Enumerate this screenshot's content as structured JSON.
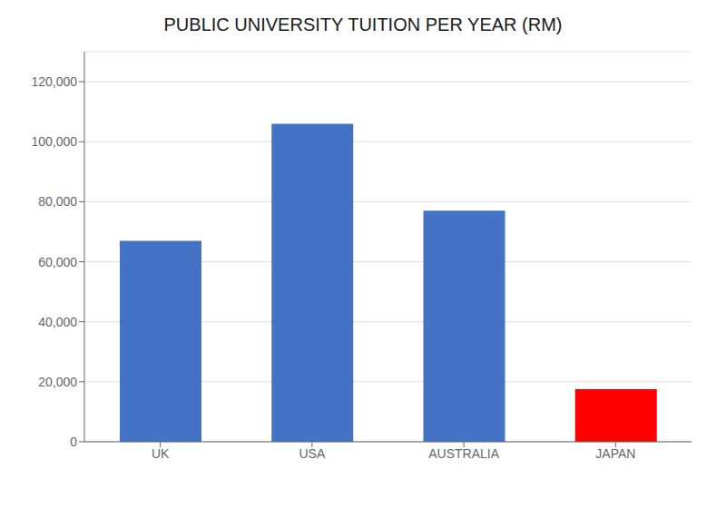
{
  "chart_data": {
    "type": "bar",
    "title": "PUBLIC UNIVERSITY TUITION PER YEAR (RM)",
    "categories": [
      "UK",
      "USA",
      "AUSTRALIA",
      "JAPAN"
    ],
    "values": [
      67000,
      106000,
      77000,
      17500
    ],
    "colors": [
      "#4472C4",
      "#4472C4",
      "#4472C4",
      "#FF0000"
    ],
    "ylim": [
      0,
      130000
    ],
    "yticks": [
      0,
      {
        "value": 20000,
        "label": "20,000"
      },
      {
        "value": 40000,
        "label": "40,000"
      },
      {
        "value": 60000,
        "label": "60,000"
      },
      {
        "value": 80000,
        "label": "80,000"
      },
      {
        "value": 100000,
        "label": "100,000"
      },
      {
        "value": 120000,
        "label": "120,000"
      }
    ],
    "grid": true
  }
}
